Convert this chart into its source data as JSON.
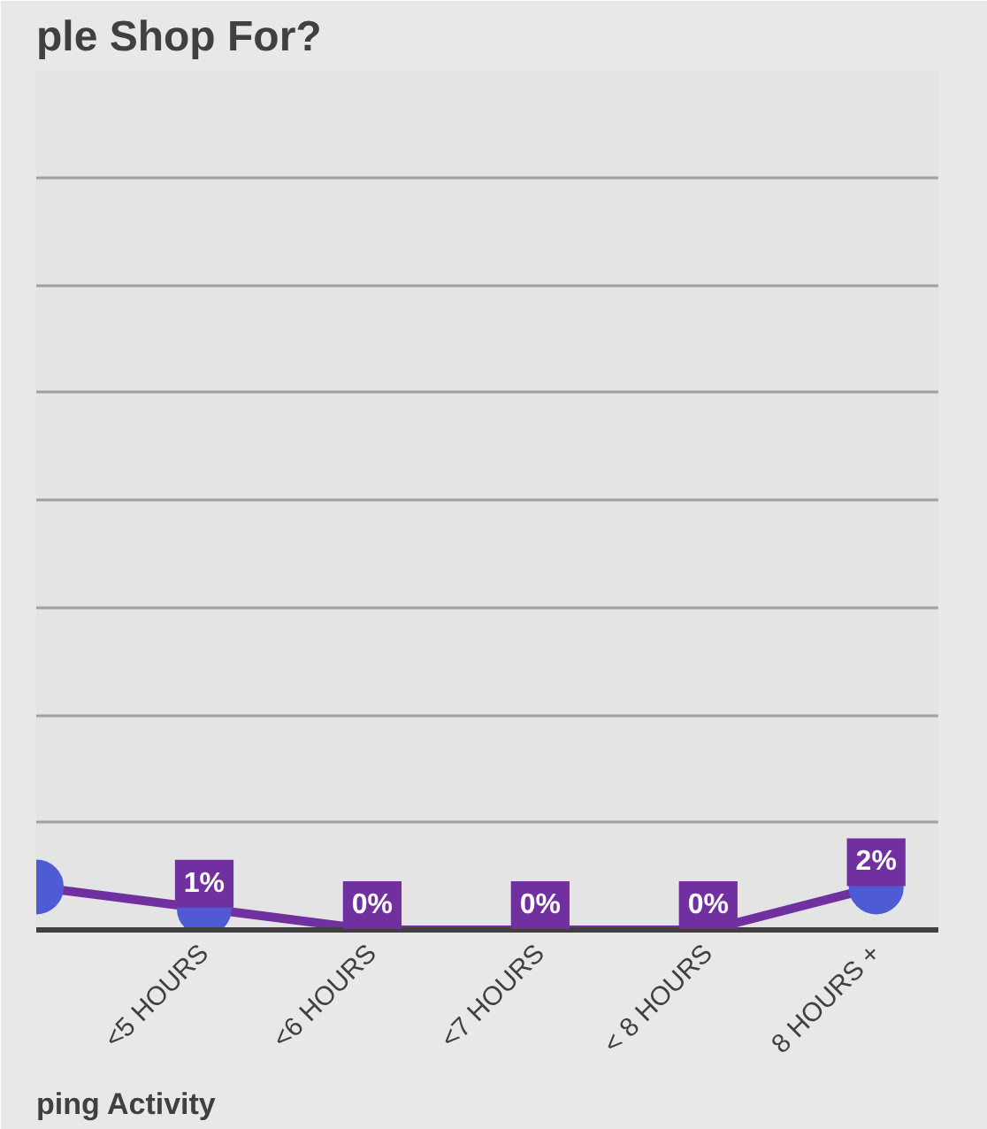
{
  "chart_data": {
    "type": "line",
    "title": "ple Shop For?",
    "xlabel": "ping Activity",
    "categories": [
      null,
      "<5 HOURS",
      "<6 HOURS",
      "<7 HOURS",
      "< 8 HOURS",
      "8 HOURS +"
    ],
    "series": [
      {
        "color": "#7030a0",
        "values": [
          2,
          1,
          0,
          0,
          0,
          2
        ],
        "value_labels": [
          null,
          "1%",
          "0%",
          "0%",
          "0%",
          "2%"
        ]
      }
    ],
    "ylim": [
      0,
      40
    ],
    "yticks": [
      {
        "value": 0,
        "label": null
      },
      {
        "value": 5,
        "label": null
      },
      {
        "value": 10,
        "label": null
      },
      {
        "value": 15,
        "label": null
      },
      {
        "value": 20,
        "label": null
      },
      {
        "value": 25,
        "label": null
      },
      {
        "value": 30,
        "label": null
      },
      {
        "value": 35,
        "label": null
      },
      {
        "value": 40,
        "label": null
      }
    ],
    "grid": "y",
    "marker": "circle",
    "tick_labels": "x"
  }
}
